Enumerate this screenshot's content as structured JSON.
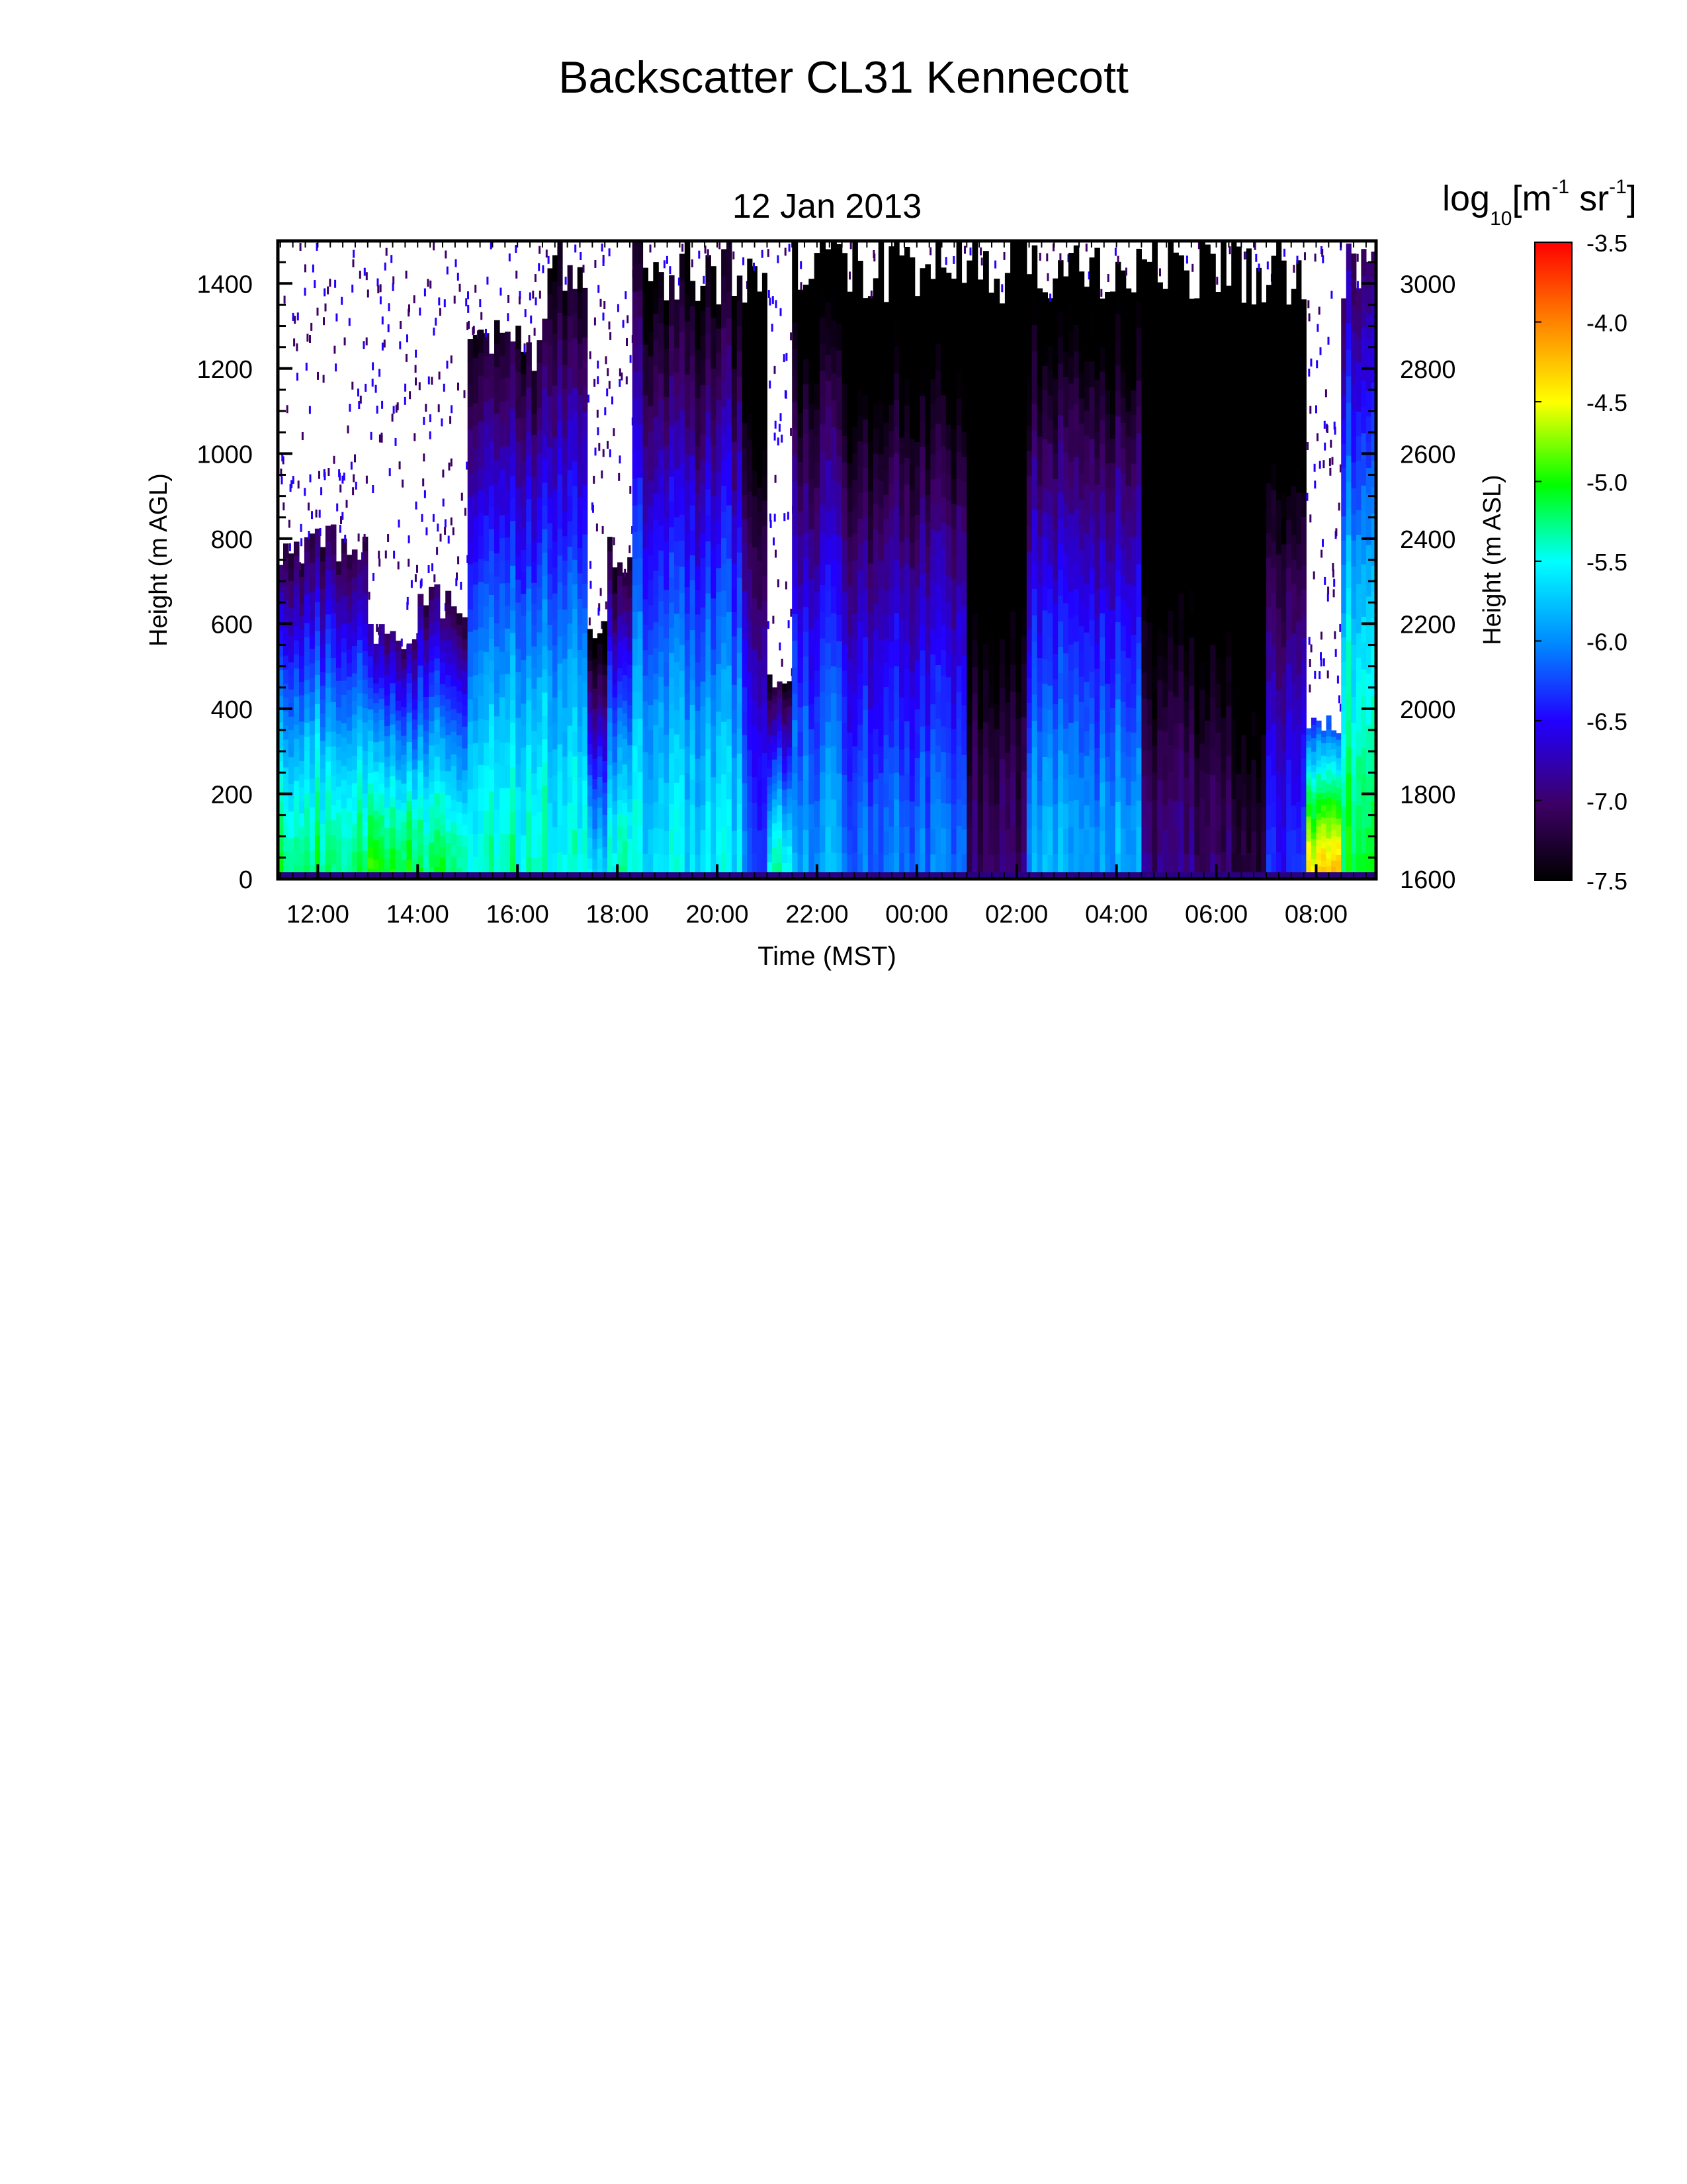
{
  "figure": {
    "title": "Backscatter CL31 Kennecott",
    "subtitle": "12 Jan 2013"
  },
  "chart_data": {
    "type": "heatmap",
    "title": "Backscatter CL31 Kennecott",
    "subtitle": "12 Jan 2013",
    "xlabel": "Time (MST)",
    "ylabel": "Height (m AGL)",
    "y2label": "Height (m ASL)",
    "colorbar_label": {
      "base": "log",
      "sub": "10",
      "unit1": "[m",
      "sup1": "-1",
      "unit2": " sr",
      "sup2": "-1",
      "close": "]"
    },
    "x_ticks": [
      "12:00",
      "14:00",
      "16:00",
      "18:00",
      "20:00",
      "22:00",
      "00:00",
      "02:00",
      "04:00",
      "06:00",
      "08:00"
    ],
    "x_range_hours": [
      11.2,
      33.2
    ],
    "y_ticks": [
      "0",
      "200",
      "400",
      "600",
      "800",
      "1000",
      "1200",
      "1400"
    ],
    "ylim": [
      0,
      1500
    ],
    "y2_ticks": [
      "1600",
      "1800",
      "2000",
      "2200",
      "2400",
      "2600",
      "2800",
      "3000"
    ],
    "y2lim": [
      1600,
      3100
    ],
    "colorbar_ticks": [
      "-3.5",
      "-4.0",
      "-4.5",
      "-5.0",
      "-5.5",
      "-6.0",
      "-6.5",
      "-7.0",
      "-7.5"
    ],
    "zlim": [
      -7.5,
      -3.5
    ],
    "colormap": [
      "#000000",
      "#3d0066",
      "#2200ff",
      "#0088ff",
      "#00ffff",
      "#00ff00",
      "#ffff00",
      "#ff8800",
      "#ff0000"
    ],
    "profile_segments": [
      {
        "t0": 11.2,
        "t1": 13.0,
        "top": 820,
        "surface": -5.1
      },
      {
        "t0": 13.0,
        "t1": 14.0,
        "top": 600,
        "surface": -5.0
      },
      {
        "t0": 14.0,
        "t1": 15.0,
        "top": 680,
        "surface": -5.1
      },
      {
        "t0": 15.0,
        "t1": 16.6,
        "top": 1300,
        "surface": -5.3
      },
      {
        "t0": 16.6,
        "t1": 17.4,
        "top": 1500,
        "surface": -5.4
      },
      {
        "t0": 17.4,
        "t1": 17.8,
        "top": 600,
        "surface": -5.6
      },
      {
        "t0": 17.8,
        "t1": 18.3,
        "top": 800,
        "surface": -5.3
      },
      {
        "t0": 18.3,
        "t1": 20.5,
        "top": 1500,
        "surface": -5.5
      },
      {
        "t0": 20.5,
        "t1": 21.0,
        "top": 1500,
        "surface": -6.1
      },
      {
        "t0": 21.0,
        "t1": 21.5,
        "top": 500,
        "surface": -5.3
      },
      {
        "t0": 21.5,
        "t1": 22.5,
        "top": 1500,
        "surface": -5.8
      },
      {
        "t0": 22.5,
        "t1": 25.0,
        "top": 1500,
        "surface": -6.0
      },
      {
        "t0": 25.0,
        "t1": 26.2,
        "top": 1500,
        "surface": -6.9
      },
      {
        "t0": 26.2,
        "t1": 28.5,
        "top": 1500,
        "surface": -5.8
      },
      {
        "t0": 28.5,
        "t1": 30.3,
        "top": 1500,
        "surface": -6.9
      },
      {
        "t0": 30.3,
        "t1": 31.0,
        "top": 1500,
        "surface": -7.2
      },
      {
        "t0": 31.0,
        "t1": 31.8,
        "top": 1500,
        "surface": -6.3
      },
      {
        "t0": 31.8,
        "t1": 32.5,
        "top": 380,
        "surface": -4.3
      },
      {
        "t0": 32.5,
        "t1": 33.2,
        "top": 1500,
        "surface": -5.0
      }
    ]
  }
}
